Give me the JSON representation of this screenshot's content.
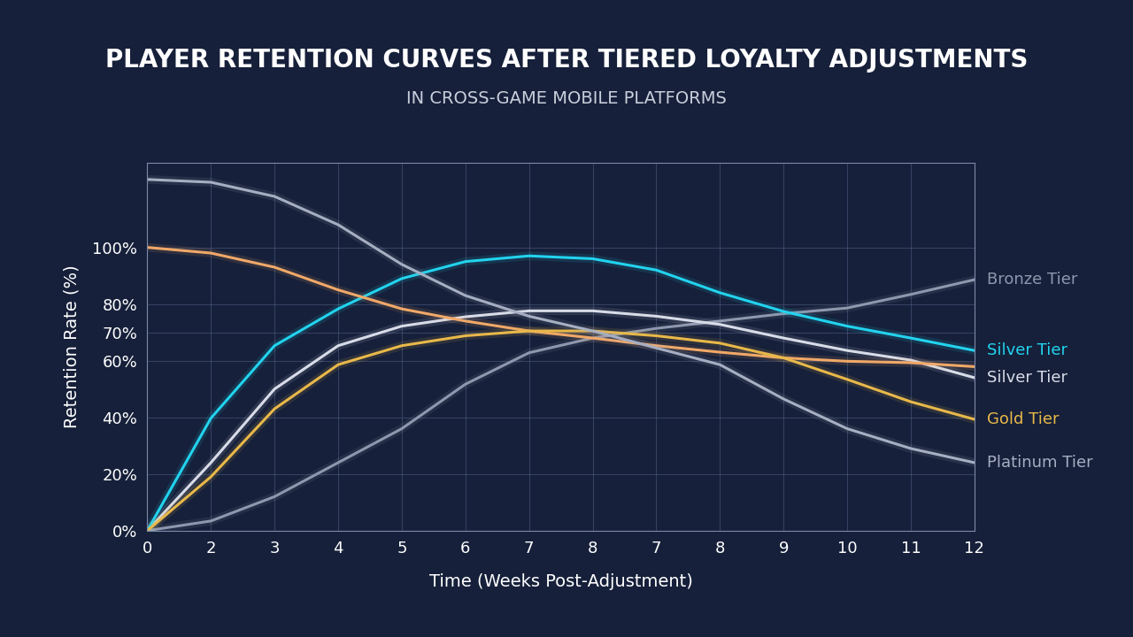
{
  "chart_data": {
    "type": "line",
    "title": "PLAYER RETENTION CURVES AFTER TIERED LOYALTY ADJUSTMENTS",
    "subtitle": "IN CROSS-GAME MOBILE PLATFORMS",
    "x_label": "Time (Weeks Post-Adjustment)",
    "y_label": "Retention Rate (%)",
    "categories": [
      "0",
      "2",
      "3",
      "4",
      "5",
      "6",
      "7",
      "8",
      "7",
      "8",
      "9",
      "10",
      "11",
      "12"
    ],
    "ylim": [
      0,
      130
    ],
    "yticks": [
      {
        "value": 0,
        "label": "0%"
      },
      {
        "value": 20,
        "label": "20%"
      },
      {
        "value": 40,
        "label": "40%"
      },
      {
        "value": 60,
        "label": "60%"
      },
      {
        "value": 70,
        "label": "70%"
      },
      {
        "value": 80,
        "label": "80%"
      },
      {
        "value": 100,
        "label": "100%"
      }
    ],
    "grid": true,
    "series": [
      {
        "name": "Bronze Tier",
        "color": "#8e97ad",
        "values": [
          0,
          3.4,
          12,
          24,
          36,
          51.7,
          62.8,
          68,
          71.4,
          74,
          76.6,
          78.6,
          83.4,
          88.6
        ]
      },
      {
        "name": "Silver Tier",
        "color": "#d8dce8",
        "values": [
          0,
          24,
          50,
          65.3,
          72.2,
          75.5,
          77.6,
          77.6,
          75.7,
          72.8,
          68,
          63.6,
          60.2,
          54
        ]
      },
      {
        "name": "Silver Tier",
        "color": "#22d3ee",
        "values": [
          0,
          39.7,
          65.3,
          78.3,
          89,
          95,
          97,
          96,
          92,
          84,
          77.4,
          72.2,
          68,
          63.6
        ]
      },
      {
        "name": null,
        "color": "#f0a868",
        "values": [
          100,
          98,
          93,
          85,
          78.3,
          74,
          70.5,
          68,
          65.3,
          63,
          61,
          59.8,
          59.3,
          57.9
        ]
      },
      {
        "name": "Gold Tier",
        "color": "#e8b84a",
        "values": [
          0,
          19,
          43,
          58.6,
          65.3,
          68.8,
          70.5,
          70.5,
          68.8,
          66.2,
          61,
          53.4,
          45.5,
          39.3
        ]
      },
      {
        "name": "Platinum Tier",
        "color": "#a6aec2",
        "values": [
          124,
          123,
          118,
          108,
          94,
          83,
          75.7,
          70.5,
          64.5,
          58.6,
          46.5,
          36,
          29,
          24
        ]
      }
    ]
  }
}
